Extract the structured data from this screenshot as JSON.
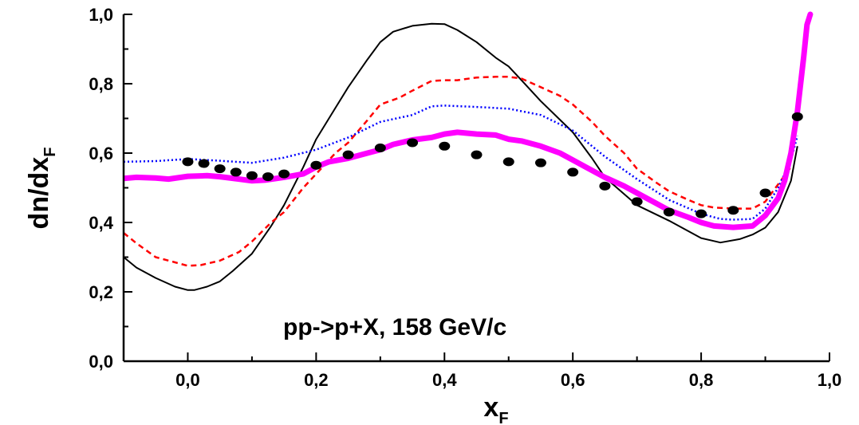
{
  "chart_data": {
    "type": "line",
    "title": "",
    "annotation": "pp->p+X, 158 GeV/c",
    "xlabel": {
      "main": "x",
      "sub": "F"
    },
    "ylabel": {
      "main": "dn/dx",
      "sub": "F"
    },
    "xlim": [
      -0.1,
      1.0
    ],
    "ylim": [
      0.0,
      1.0
    ],
    "x_ticks": [
      0.0,
      0.2,
      0.4,
      0.6,
      0.8,
      1.0
    ],
    "x_tick_labels": [
      "0,0",
      "0,2",
      "0,4",
      "0,6",
      "0,8",
      "1,0"
    ],
    "y_ticks": [
      0.0,
      0.2,
      0.4,
      0.6,
      0.8,
      1.0
    ],
    "y_tick_labels": [
      "0,0",
      "0,2",
      "0,4",
      "0,6",
      "0,8",
      "1,0"
    ],
    "grid": false,
    "legend": "none",
    "series": [
      {
        "style": "solid-thin",
        "color": "#000000",
        "points": [
          [
            -0.1,
            0.3
          ],
          [
            -0.08,
            0.27
          ],
          [
            -0.05,
            0.24
          ],
          [
            -0.02,
            0.215
          ],
          [
            0.0,
            0.205
          ],
          [
            0.01,
            0.205
          ],
          [
            0.03,
            0.215
          ],
          [
            0.05,
            0.23
          ],
          [
            0.07,
            0.26
          ],
          [
            0.1,
            0.31
          ],
          [
            0.13,
            0.39
          ],
          [
            0.15,
            0.45
          ],
          [
            0.18,
            0.56
          ],
          [
            0.2,
            0.64
          ],
          [
            0.23,
            0.73
          ],
          [
            0.25,
            0.79
          ],
          [
            0.28,
            0.87
          ],
          [
            0.3,
            0.92
          ],
          [
            0.32,
            0.95
          ],
          [
            0.35,
            0.967
          ],
          [
            0.38,
            0.973
          ],
          [
            0.4,
            0.972
          ],
          [
            0.42,
            0.955
          ],
          [
            0.45,
            0.92
          ],
          [
            0.48,
            0.875
          ],
          [
            0.5,
            0.85
          ],
          [
            0.52,
            0.81
          ],
          [
            0.55,
            0.75
          ],
          [
            0.6,
            0.66
          ],
          [
            0.63,
            0.585
          ],
          [
            0.65,
            0.53
          ],
          [
            0.7,
            0.45
          ],
          [
            0.75,
            0.405
          ],
          [
            0.8,
            0.355
          ],
          [
            0.83,
            0.342
          ],
          [
            0.86,
            0.352
          ],
          [
            0.88,
            0.365
          ],
          [
            0.9,
            0.385
          ],
          [
            0.92,
            0.43
          ],
          [
            0.94,
            0.52
          ],
          [
            0.95,
            0.62
          ]
        ]
      },
      {
        "style": "dashed",
        "color": "#ff0000",
        "points": [
          [
            -0.1,
            0.37
          ],
          [
            -0.08,
            0.34
          ],
          [
            -0.05,
            0.3
          ],
          [
            -0.02,
            0.285
          ],
          [
            0.0,
            0.275
          ],
          [
            0.02,
            0.277
          ],
          [
            0.05,
            0.29
          ],
          [
            0.08,
            0.315
          ],
          [
            0.1,
            0.345
          ],
          [
            0.13,
            0.4
          ],
          [
            0.15,
            0.43
          ],
          [
            0.18,
            0.5
          ],
          [
            0.2,
            0.54
          ],
          [
            0.23,
            0.6
          ],
          [
            0.25,
            0.63
          ],
          [
            0.28,
            0.695
          ],
          [
            0.3,
            0.74
          ],
          [
            0.33,
            0.76
          ],
          [
            0.35,
            0.78
          ],
          [
            0.38,
            0.808
          ],
          [
            0.4,
            0.81
          ],
          [
            0.42,
            0.81
          ],
          [
            0.45,
            0.818
          ],
          [
            0.48,
            0.82
          ],
          [
            0.5,
            0.82
          ],
          [
            0.52,
            0.815
          ],
          [
            0.55,
            0.79
          ],
          [
            0.58,
            0.765
          ],
          [
            0.6,
            0.74
          ],
          [
            0.63,
            0.69
          ],
          [
            0.65,
            0.65
          ],
          [
            0.68,
            0.6
          ],
          [
            0.7,
            0.555
          ],
          [
            0.73,
            0.515
          ],
          [
            0.75,
            0.49
          ],
          [
            0.78,
            0.465
          ],
          [
            0.8,
            0.45
          ],
          [
            0.82,
            0.443
          ],
          [
            0.85,
            0.44
          ],
          [
            0.88,
            0.44
          ],
          [
            0.9,
            0.46
          ],
          [
            0.92,
            0.51
          ],
          [
            0.94,
            0.56
          ]
        ]
      },
      {
        "style": "dotted",
        "color": "#0000ff",
        "points": [
          [
            -0.1,
            0.575
          ],
          [
            -0.05,
            0.577
          ],
          [
            0.0,
            0.583
          ],
          [
            0.05,
            0.578
          ],
          [
            0.1,
            0.572
          ],
          [
            0.15,
            0.587
          ],
          [
            0.2,
            0.61
          ],
          [
            0.25,
            0.645
          ],
          [
            0.3,
            0.69
          ],
          [
            0.35,
            0.71
          ],
          [
            0.38,
            0.735
          ],
          [
            0.4,
            0.737
          ],
          [
            0.45,
            0.733
          ],
          [
            0.5,
            0.728
          ],
          [
            0.55,
            0.71
          ],
          [
            0.6,
            0.665
          ],
          [
            0.65,
            0.59
          ],
          [
            0.7,
            0.525
          ],
          [
            0.75,
            0.465
          ],
          [
            0.8,
            0.425
          ],
          [
            0.83,
            0.41
          ],
          [
            0.85,
            0.408
          ],
          [
            0.88,
            0.41
          ],
          [
            0.9,
            0.44
          ],
          [
            0.92,
            0.5
          ],
          [
            0.94,
            0.58
          ],
          [
            0.95,
            0.65
          ]
        ]
      },
      {
        "style": "thick",
        "color": "#ff00ff",
        "points": [
          [
            -0.1,
            0.527
          ],
          [
            -0.08,
            0.53
          ],
          [
            -0.05,
            0.528
          ],
          [
            -0.03,
            0.525
          ],
          [
            0.0,
            0.533
          ],
          [
            0.03,
            0.535
          ],
          [
            0.05,
            0.532
          ],
          [
            0.08,
            0.525
          ],
          [
            0.1,
            0.52
          ],
          [
            0.12,
            0.522
          ],
          [
            0.15,
            0.53
          ],
          [
            0.18,
            0.54
          ],
          [
            0.2,
            0.56
          ],
          [
            0.22,
            0.575
          ],
          [
            0.25,
            0.585
          ],
          [
            0.28,
            0.6
          ],
          [
            0.3,
            0.61
          ],
          [
            0.32,
            0.625
          ],
          [
            0.35,
            0.638
          ],
          [
            0.38,
            0.645
          ],
          [
            0.4,
            0.655
          ],
          [
            0.42,
            0.66
          ],
          [
            0.45,
            0.655
          ],
          [
            0.48,
            0.652
          ],
          [
            0.5,
            0.64
          ],
          [
            0.52,
            0.635
          ],
          [
            0.55,
            0.62
          ],
          [
            0.58,
            0.6
          ],
          [
            0.6,
            0.58
          ],
          [
            0.62,
            0.56
          ],
          [
            0.65,
            0.53
          ],
          [
            0.68,
            0.505
          ],
          [
            0.7,
            0.485
          ],
          [
            0.73,
            0.455
          ],
          [
            0.75,
            0.435
          ],
          [
            0.78,
            0.415
          ],
          [
            0.8,
            0.4
          ],
          [
            0.82,
            0.39
          ],
          [
            0.85,
            0.386
          ],
          [
            0.88,
            0.39
          ],
          [
            0.9,
            0.42
          ],
          [
            0.92,
            0.47
          ],
          [
            0.93,
            0.52
          ],
          [
            0.94,
            0.6
          ],
          [
            0.95,
            0.72
          ],
          [
            0.96,
            0.88
          ],
          [
            0.965,
            0.97
          ],
          [
            0.97,
            1.0
          ]
        ]
      },
      {
        "style": "markers",
        "color": "#000000",
        "points": [
          [
            0.0,
            0.575
          ],
          [
            0.025,
            0.57
          ],
          [
            0.05,
            0.555
          ],
          [
            0.075,
            0.545
          ],
          [
            0.1,
            0.535
          ],
          [
            0.125,
            0.532
          ],
          [
            0.15,
            0.54
          ],
          [
            0.2,
            0.565
          ],
          [
            0.25,
            0.595
          ],
          [
            0.3,
            0.615
          ],
          [
            0.35,
            0.63
          ],
          [
            0.4,
            0.62
          ],
          [
            0.45,
            0.595
          ],
          [
            0.5,
            0.575
          ],
          [
            0.55,
            0.572
          ],
          [
            0.6,
            0.545
          ],
          [
            0.65,
            0.505
          ],
          [
            0.7,
            0.46
          ],
          [
            0.75,
            0.43
          ],
          [
            0.8,
            0.425
          ],
          [
            0.85,
            0.435
          ],
          [
            0.9,
            0.485
          ],
          [
            0.95,
            0.705
          ]
        ]
      }
    ]
  }
}
